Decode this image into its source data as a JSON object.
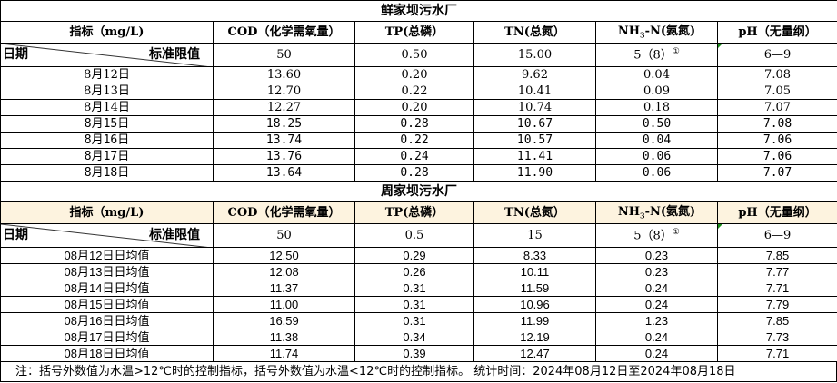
{
  "plants": [
    {
      "name": "鲜家坝污水厂",
      "headers": [
        "指标（mg/L)",
        "COD（化学需氧量）",
        "TP(总磷）",
        "TN(总氮）",
        "NH3-N(氨氮)",
        "pH（无量纲）"
      ],
      "date_label": "日期",
      "std_label": "标准限值",
      "standards": [
        "50",
        "0.50",
        "15.00",
        "5（8）",
        "6—9"
      ],
      "footnote_mark": "①",
      "rows": [
        [
          "8月12日",
          "13.60",
          "0.20",
          "9.62",
          "0.04",
          "7.08"
        ],
        [
          "8月13日",
          "12.70",
          "0.22",
          "10.41",
          "0.09",
          "7.05"
        ],
        [
          "8月14日",
          "12.27",
          "0.20",
          "10.74",
          "0.18",
          "7.07"
        ],
        [
          "8月15日",
          "18.25",
          "0.28",
          "10.67",
          "0.50",
          "7.08"
        ],
        [
          "8月16日",
          "13.74",
          "0.22",
          "10.57",
          "0.04",
          "7.06"
        ],
        [
          "8月17日",
          "13.76",
          "0.24",
          "11.41",
          "0.06",
          "7.06"
        ],
        [
          "8月18日",
          "13.64",
          "0.28",
          "11.90",
          "0.06",
          "7.07"
        ]
      ]
    },
    {
      "name": "周家坝污水厂",
      "headers": [
        "指标（mg/L)",
        "COD（化学需氧量）",
        "TP(总磷）",
        "TN(总氮）",
        "NH3-N(氨氮)",
        "pH（无量纲）"
      ],
      "date_label": "日期",
      "std_label": "标准限值",
      "standards": [
        "50",
        "0.5",
        "15",
        "5（8）",
        "6—9"
      ],
      "footnote_mark": "①",
      "rows": [
        [
          "08月12日日均值",
          "12.50",
          "0.29",
          "8.33",
          "0.23",
          "7.85"
        ],
        [
          "08月13日日均值",
          "12.08",
          "0.26",
          "10.11",
          "0.23",
          "7.77"
        ],
        [
          "08月14日日均值",
          "11.37",
          "0.31",
          "11.59",
          "0.24",
          "7.71"
        ],
        [
          "08月15日日均值",
          "11.00",
          "0.31",
          "10.96",
          "0.24",
          "7.79"
        ],
        [
          "08月16日日均值",
          "16.59",
          "0.31",
          "11.99",
          "1.23",
          "7.85"
        ],
        [
          "08月17日日均值",
          "11.38",
          "0.34",
          "12.19",
          "0.24",
          "7.73"
        ],
        [
          "08月18日日均值",
          "11.74",
          "0.39",
          "12.47",
          "0.24",
          "7.71"
        ]
      ]
    }
  ],
  "note": "注：括号外数值为水温>12℃时的控制指标，括号外数值为水温<12℃时的控制指标。  统计时间：2024年08月12日至2024年08月18日"
}
